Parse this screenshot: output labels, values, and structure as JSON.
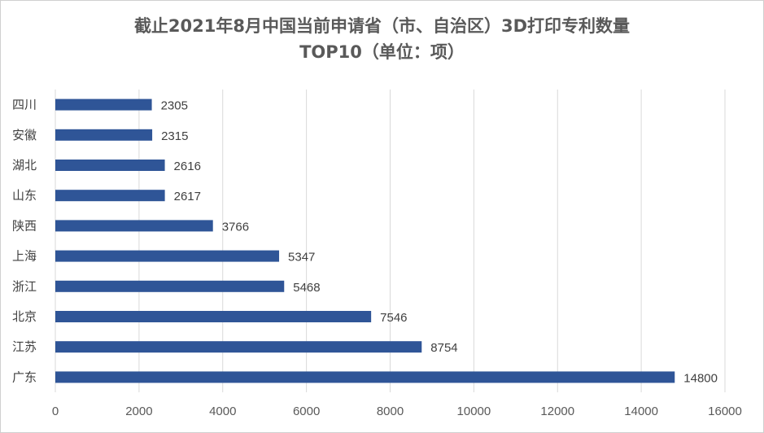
{
  "chart_data": {
    "type": "bar",
    "orientation": "horizontal",
    "title_lines": [
      "截止2021年8月中国当前申请省（市、自治区）3D打印专利数量",
      "TOP10（单位：项）"
    ],
    "categories": [
      "四川",
      "安徽",
      "湖北",
      "山东",
      "陕西",
      "上海",
      "浙江",
      "北京",
      "江苏",
      "广东"
    ],
    "values": [
      2305,
      2315,
      2616,
      2617,
      3766,
      5347,
      5468,
      7546,
      8754,
      14800
    ],
    "xlim": [
      0,
      16000
    ],
    "xticks": [
      0,
      2000,
      4000,
      6000,
      8000,
      10000,
      12000,
      14000,
      16000
    ],
    "xlabel": "",
    "ylabel": "",
    "grid": "vertical",
    "legend": "none",
    "bar_color": "#2F5597",
    "grid_color": "#d9d9d9"
  }
}
